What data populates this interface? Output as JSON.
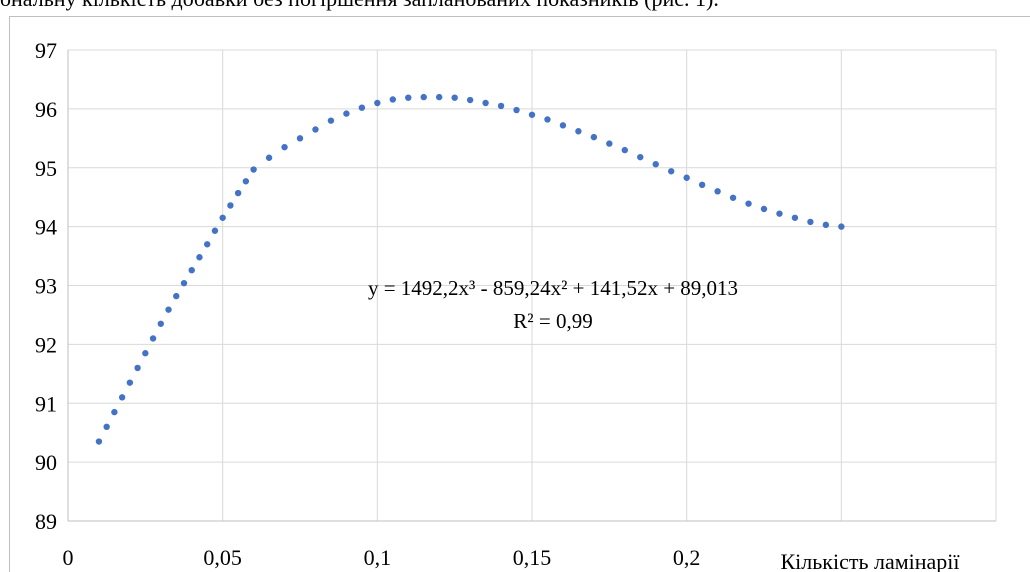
{
  "caption": "ональну кількість добавки без погіршення запланованих показників (рис. 1).",
  "colors": {
    "marker": "#4472c4",
    "grid": "#d9d9d9",
    "axis": "#bfbfbf"
  },
  "chart_data": {
    "type": "scatter",
    "xlabel": "Кількість ламінарії",
    "ylabel": "",
    "xlim": [
      0,
      0.3
    ],
    "ylim": [
      89,
      97
    ],
    "x_ticks": [
      0,
      0.05,
      0.1,
      0.15,
      0.2
    ],
    "x_tick_labels": [
      "0",
      "0,05",
      "0,1",
      "0,15",
      "0,2"
    ],
    "y_ticks": [
      89,
      90,
      91,
      92,
      93,
      94,
      95,
      96,
      97
    ],
    "y_tick_labels": [
      "89",
      "90",
      "91",
      "92",
      "93",
      "94",
      "95",
      "96",
      "97"
    ],
    "grid": true,
    "trendline": {
      "equation": "y = 1492,2x³ - 859,24x² + 141,52x + 89,013",
      "r_squared": "R² = 0,99",
      "coefficients": [
        1492.2,
        -859.24,
        141.52,
        89.013
      ]
    },
    "series": [
      {
        "x": [
          0.01,
          0.0125,
          0.015,
          0.0175,
          0.02,
          0.0225,
          0.025,
          0.0275,
          0.03,
          0.0325,
          0.035,
          0.0375,
          0.04,
          0.0425,
          0.045,
          0.0475,
          0.05,
          0.0525,
          0.055,
          0.0575,
          0.06,
          0.065,
          0.07,
          0.075,
          0.08,
          0.085,
          0.09,
          0.095,
          0.1,
          0.105,
          0.11,
          0.115,
          0.12,
          0.125,
          0.13,
          0.135,
          0.14,
          0.145,
          0.15,
          0.155,
          0.16,
          0.165,
          0.17,
          0.175,
          0.18,
          0.185,
          0.19,
          0.195,
          0.2,
          0.205,
          0.21,
          0.215,
          0.22,
          0.225,
          0.23,
          0.235,
          0.24,
          0.245,
          0.25
        ],
        "y": [
          90.35,
          90.6,
          90.85,
          91.1,
          91.35,
          91.6,
          91.85,
          92.1,
          92.35,
          92.59,
          92.82,
          93.04,
          93.26,
          93.48,
          93.7,
          93.93,
          94.15,
          94.36,
          94.57,
          94.77,
          94.97,
          95.17,
          95.35,
          95.5,
          95.65,
          95.8,
          95.92,
          96.02,
          96.1,
          96.16,
          96.19,
          96.2,
          96.2,
          96.19,
          96.15,
          96.1,
          96.05,
          95.98,
          95.9,
          95.82,
          95.72,
          95.62,
          95.52,
          95.41,
          95.3,
          95.18,
          95.06,
          94.94,
          94.83,
          94.71,
          94.6,
          94.49,
          94.39,
          94.3,
          94.22,
          94.15,
          94.08,
          94.03,
          94.0
        ]
      }
    ]
  }
}
